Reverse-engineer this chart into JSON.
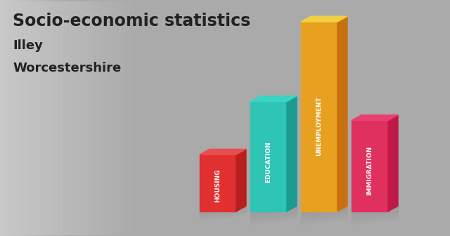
{
  "title": "Socio-economic statistics",
  "subtitle1": "Illey",
  "subtitle2": "Worcestershire",
  "categories": [
    "HOUSING",
    "EDUCATION",
    "UNEMPLOYMENT",
    "IMMIGRATION"
  ],
  "values": [
    0.3,
    0.58,
    1.0,
    0.48
  ],
  "front_colors": [
    "#e03030",
    "#2ec4b6",
    "#e8a020",
    "#e03060"
  ],
  "side_colors": [
    "#b82020",
    "#1a9a90",
    "#c87010",
    "#c01848"
  ],
  "top_colors": [
    "#e85050",
    "#3ad4c4",
    "#f0d040",
    "#e84070"
  ],
  "background_color": "#c8c8c8",
  "title_fontsize": 17,
  "subtitle_fontsize": 13,
  "label_fontsize": 6.5
}
